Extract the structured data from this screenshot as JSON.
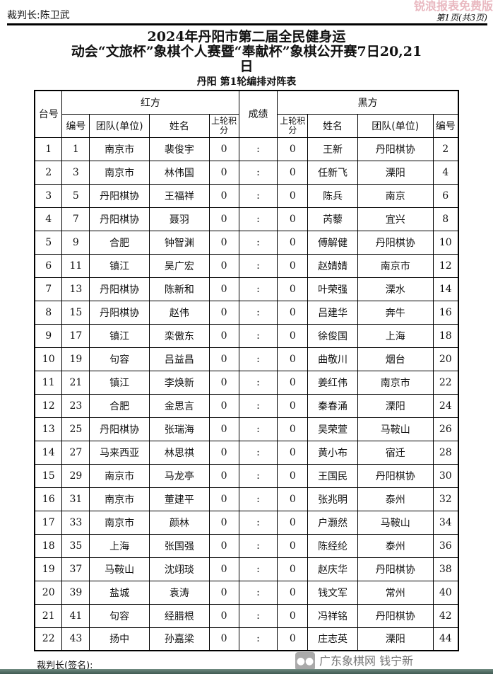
{
  "header": {
    "chief_referee": "裁判长:陈卫武",
    "page_info": "第1页(共3页)",
    "watermark": "锐浪报表免费版"
  },
  "title": {
    "line1": "2024年丹阳市第二届全民健身运",
    "line2": "动会“文旅杯”象棋个人赛暨“奉献杯”象棋公开赛7日20,21",
    "line3": "日",
    "subtitle": "丹阳 第1轮编排对阵表"
  },
  "columns": {
    "table_no": "台号",
    "red": "红方",
    "black": "黑方",
    "result": "成绩",
    "no": "编号",
    "team": "团队(单位)",
    "name": "姓名",
    "prev_score": "上轮积分"
  },
  "rows": [
    [
      "1",
      "1",
      "南京市",
      "裴俊宇",
      "0",
      ":",
      "0",
      "王新",
      "丹阳棋协",
      "2"
    ],
    [
      "2",
      "3",
      "南京市",
      "林伟国",
      "0",
      ":",
      "0",
      "任新飞",
      "溧阳",
      "4"
    ],
    [
      "3",
      "5",
      "丹阳棋协",
      "王福祥",
      "0",
      ":",
      "0",
      "陈兵",
      "南京",
      "6"
    ],
    [
      "4",
      "7",
      "丹阳棋协",
      "聂羽",
      "0",
      ":",
      "0",
      "芮藜",
      "宜兴",
      "8"
    ],
    [
      "5",
      "9",
      "合肥",
      "钟智渊",
      "0",
      ":",
      "0",
      "傅解健",
      "丹阳棋协",
      "10"
    ],
    [
      "6",
      "11",
      "镇江",
      "吴广宏",
      "0",
      ":",
      "0",
      "赵婧婧",
      "南京市",
      "12"
    ],
    [
      "7",
      "13",
      "丹阳棋协",
      "陈新和",
      "0",
      ":",
      "0",
      "叶荣强",
      "溧水",
      "14"
    ],
    [
      "8",
      "15",
      "丹阳棋协",
      "赵伟",
      "0",
      ":",
      "0",
      "吕建华",
      "奔牛",
      "16"
    ],
    [
      "9",
      "17",
      "镇江",
      "栾傲东",
      "0",
      ":",
      "0",
      "徐俊国",
      "上海",
      "18"
    ],
    [
      "10",
      "19",
      "句容",
      "吕益昌",
      "0",
      ":",
      "0",
      "曲敬川",
      "烟台",
      "20"
    ],
    [
      "11",
      "21",
      "镇江",
      "李焕新",
      "0",
      ":",
      "0",
      "姜红伟",
      "南京市",
      "22"
    ],
    [
      "12",
      "23",
      "合肥",
      "金思言",
      "0",
      ":",
      "0",
      "秦春涌",
      "溧阳",
      "24"
    ],
    [
      "13",
      "25",
      "丹阳棋协",
      "张瑞海",
      "0",
      ":",
      "0",
      "吴荣萱",
      "马鞍山",
      "26"
    ],
    [
      "14",
      "27",
      "马来西亚",
      "林思祺",
      "0",
      ":",
      "0",
      "黄小布",
      "宿迁",
      "28"
    ],
    [
      "15",
      "29",
      "南京市",
      "马龙亭",
      "0",
      ":",
      "0",
      "王国民",
      "丹阳棋协",
      "30"
    ],
    [
      "16",
      "31",
      "南京市",
      "董建平",
      "0",
      ":",
      "0",
      "张兆明",
      "泰州",
      "32"
    ],
    [
      "17",
      "33",
      "南京市",
      "颜林",
      "0",
      ":",
      "0",
      "户灏然",
      "马鞍山",
      "34"
    ],
    [
      "18",
      "35",
      "上海",
      "张国强",
      "0",
      ":",
      "0",
      "陈经纶",
      "泰州",
      "36"
    ],
    [
      "19",
      "37",
      "马鞍山",
      "沈翊琰",
      "0",
      ":",
      "0",
      "赵庆华",
      "丹阳棋协",
      "38"
    ],
    [
      "20",
      "39",
      "盐城",
      "袁涛",
      "0",
      ":",
      "0",
      "钱文军",
      "常州",
      "40"
    ],
    [
      "21",
      "41",
      "句容",
      "经腊根",
      "0",
      ":",
      "0",
      "冯祥铭",
      "丹阳棋协",
      "42"
    ],
    [
      "22",
      "43",
      "扬中",
      "孙嘉梁",
      "0",
      ":",
      "0",
      "庄志英",
      "溧阳",
      "44"
    ]
  ],
  "footer": {
    "signature": "裁判长(签名):",
    "watermark": "广东象棋网 钱宁新"
  }
}
